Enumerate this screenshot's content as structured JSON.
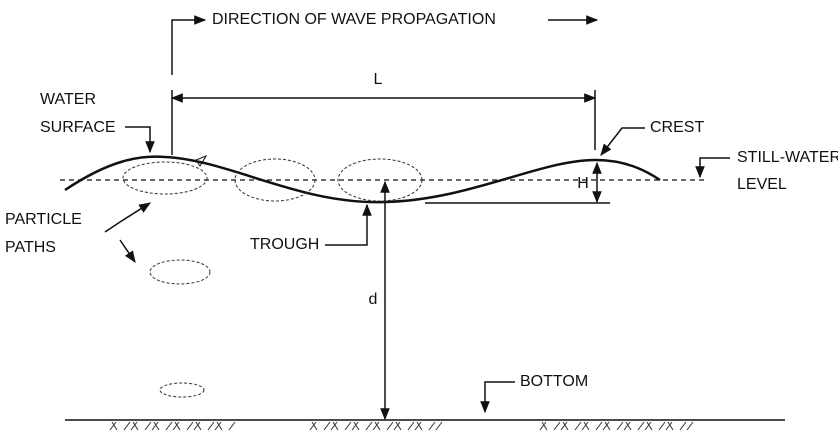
{
  "direction": "DIRECTION OF WAVE PROPAGATION",
  "wavelength": "L",
  "water_surface": [
    "WATER",
    "SURFACE"
  ],
  "crest": "CREST",
  "still_water_level": [
    "STILL-WATER",
    "LEVEL"
  ],
  "wave_height": "H",
  "particle_paths": [
    "PARTICLE",
    "PATHS"
  ],
  "trough": "TROUGH",
  "depth": "d",
  "bottom": "BOTTOM"
}
